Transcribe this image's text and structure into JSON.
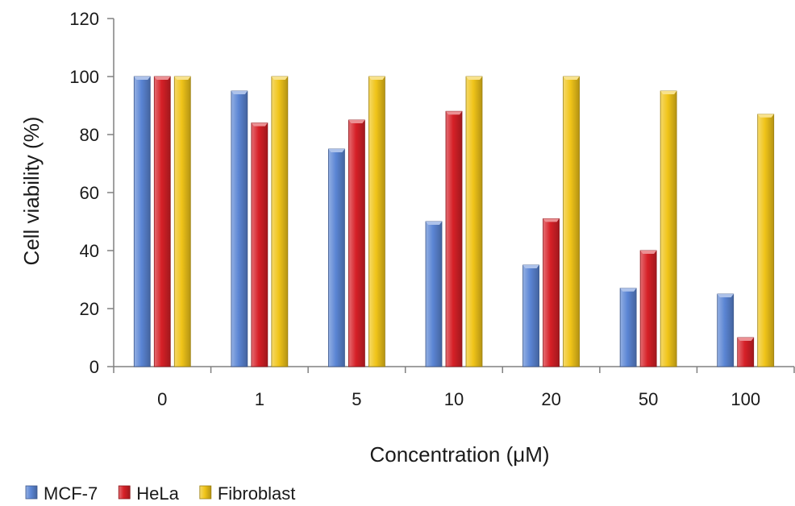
{
  "chart_data": {
    "type": "bar",
    "categories": [
      "0",
      "1",
      "5",
      "10",
      "20",
      "50",
      "100"
    ],
    "series": [
      {
        "name": "MCF-7",
        "color": "#5b85d4",
        "values": [
          100,
          95,
          75,
          50,
          35,
          27,
          25
        ]
      },
      {
        "name": "HeLa",
        "color": "#d62027",
        "values": [
          100,
          84,
          85,
          88,
          51,
          40,
          10
        ]
      },
      {
        "name": "Fibroblast",
        "color": "#f0c419",
        "values": [
          100,
          100,
          100,
          100,
          100,
          95,
          87
        ]
      }
    ],
    "xlabel": "Concentration (μM)",
    "ylabel": "Cell viability (%)",
    "ylim": [
      0,
      120
    ],
    "yticks": [
      0,
      20,
      40,
      60,
      80,
      100,
      120
    ],
    "grid": false,
    "legend_position": "bottom-left"
  }
}
